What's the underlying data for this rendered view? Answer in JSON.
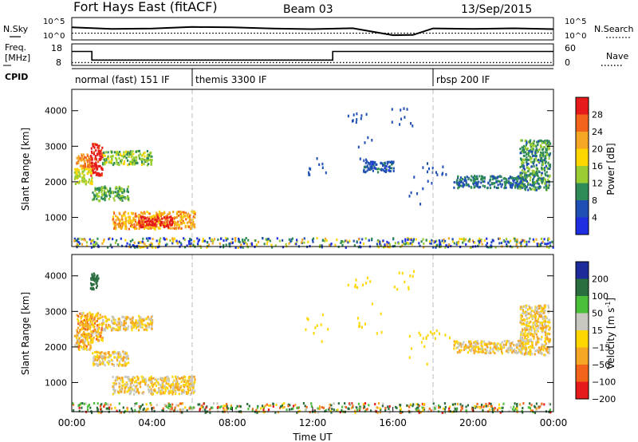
{
  "header": {
    "title": "Fort Hays East (fitACF)",
    "beam": "Beam 03",
    "date": "13/Sep/2015"
  },
  "noise_panel": {
    "left_label": "N.Sky",
    "right_label": "N.Search",
    "left_ticks": [
      "10^5",
      "10^0"
    ],
    "right_ticks": [
      "10^5",
      "10^0"
    ]
  },
  "freq_panel": {
    "left_label_line1": "Freq.",
    "left_label_line2": "[MHz]",
    "right_label": "Nave",
    "left_ticks": [
      "18",
      "8"
    ],
    "right_ticks": [
      "60",
      "0"
    ]
  },
  "cpid": {
    "label": "CPID",
    "segments": [
      {
        "label": "normal (fast) 151 IF",
        "start_hour": 0
      },
      {
        "label": "themis 3300 IF",
        "start_hour": 6
      },
      {
        "label": "rbsp 200 IF",
        "start_hour": 18
      }
    ]
  },
  "power_panel": {
    "ylabel": "Slant Range [km]",
    "yticks": [
      "4000",
      "3000",
      "2000",
      "1000"
    ],
    "colorbar_label": "Power [dB]",
    "colorbar_ticks": [
      "28",
      "24",
      "20",
      "16",
      "12",
      "8",
      "4"
    ]
  },
  "velocity_panel": {
    "ylabel": "Slant Range [km]",
    "yticks": [
      "4000",
      "3000",
      "2000",
      "1000"
    ],
    "colorbar_label_main": "Velocity [m s",
    "colorbar_label_sup": "-1",
    "colorbar_label_end": "]",
    "colorbar_ticks": [
      "200",
      "100",
      "50",
      "15",
      "−15",
      "−50",
      "−100",
      "−200"
    ]
  },
  "xaxis": {
    "label": "Time UT",
    "ticks": [
      "00:00",
      "04:00",
      "08:00",
      "12:00",
      "16:00",
      "20:00",
      "00:00"
    ]
  },
  "colors": {
    "power_scale": [
      "#e61a1a",
      "#f26419",
      "#f5a623",
      "#ffd700",
      "#9acd32",
      "#2e8b57",
      "#1f4fb4",
      "#1e2ee0"
    ],
    "velocity_scale": [
      "#1c2a9a",
      "#2a6e3f",
      "#4cbf3a",
      "#c8c8c0",
      "#ffd700",
      "#f5a623",
      "#f26419",
      "#e61a1a"
    ]
  },
  "chart_data": [
    {
      "type": "line",
      "name": "noise",
      "x_hours": [
        0,
        2,
        4,
        6,
        8,
        10,
        12,
        14,
        16,
        17,
        18,
        20,
        22,
        24
      ],
      "series": [
        {
          "name": "N.Sky",
          "values": [
            0.55,
            0.5,
            0.5,
            0.55,
            0.55,
            0.5,
            0.5,
            0.5,
            0.2,
            0.2,
            0.5,
            0.5,
            0.5,
            0.5
          ]
        },
        {
          "name": "N.Search",
          "values": [
            0.3,
            0.3,
            0.3,
            0.3,
            0.3,
            0.3,
            0.3,
            0.3,
            0.3,
            0.3,
            0.3,
            0.3,
            0.3,
            0.3
          ]
        }
      ]
    },
    {
      "type": "line",
      "name": "frequency",
      "series": [
        {
          "name": "Freq.",
          "x_hours": [
            0,
            1,
            1,
            13,
            13,
            24
          ],
          "values": [
            14.5,
            14.5,
            10.5,
            10.5,
            14.5,
            14.5
          ]
        },
        {
          "name": "Nave",
          "x_hours": [
            0,
            24
          ],
          "values": [
            8,
            8
          ]
        }
      ]
    },
    {
      "type": "heatmap",
      "name": "power",
      "xlim_hours": [
        0,
        24
      ],
      "ylim_km": [
        180,
        4600
      ],
      "value_unit": "dB",
      "scale": [
        4,
        28
      ],
      "regions": [
        {
          "t0": 0.2,
          "t1": 1.0,
          "r0": 2400,
          "r1": 2800,
          "value": 22
        },
        {
          "t0": 0.9,
          "t1": 1.5,
          "r0": 2200,
          "r1": 3100,
          "value": 27
        },
        {
          "t0": 1.5,
          "t1": 4.0,
          "r0": 2500,
          "r1": 2900,
          "value": 14
        },
        {
          "t0": 0.1,
          "t1": 1.0,
          "r0": 1950,
          "r1": 2400,
          "value": 16
        },
        {
          "t0": 1.0,
          "t1": 2.8,
          "r0": 1500,
          "r1": 1900,
          "value": 13
        },
        {
          "t0": 2.0,
          "t1": 6.1,
          "r0": 700,
          "r1": 1200,
          "value": 20
        },
        {
          "t0": 3.3,
          "t1": 5.0,
          "r0": 750,
          "r1": 1050,
          "value": 27
        },
        {
          "t0": 19.0,
          "t1": 22.5,
          "r0": 1850,
          "r1": 2200,
          "value": 10
        },
        {
          "t0": 22.3,
          "t1": 23.8,
          "r0": 1800,
          "r1": 3200,
          "value": 12
        },
        {
          "t0": 14.5,
          "t1": 16.0,
          "r0": 2300,
          "r1": 2600,
          "value": 9
        },
        {
          "t0": 0.0,
          "t1": 24.0,
          "r0": 180,
          "r1": 450,
          "value": 12
        }
      ]
    },
    {
      "type": "heatmap",
      "name": "velocity",
      "xlim_hours": [
        0,
        24
      ],
      "ylim_km": [
        180,
        4600
      ],
      "value_unit": "m s^-1",
      "scale": [
        -200,
        200
      ],
      "regions": [
        {
          "t0": 0.2,
          "t1": 1.5,
          "r0": 2200,
          "r1": 3000,
          "value": -30
        },
        {
          "t0": 1.5,
          "t1": 4.0,
          "r0": 2500,
          "r1": 2900,
          "value": 0
        },
        {
          "t0": 0.1,
          "t1": 1.0,
          "r0": 1950,
          "r1": 2400,
          "value": -20
        },
        {
          "t0": 1.0,
          "t1": 2.8,
          "r0": 1500,
          "r1": 1900,
          "value": 0
        },
        {
          "t0": 2.0,
          "t1": 6.1,
          "r0": 700,
          "r1": 1200,
          "value": 0
        },
        {
          "t0": 0.9,
          "t1": 1.3,
          "r0": 3650,
          "r1": 4100,
          "value": 150
        },
        {
          "t0": 19.0,
          "t1": 22.5,
          "r0": 1850,
          "r1": 2200,
          "value": 0
        },
        {
          "t0": 22.3,
          "t1": 23.8,
          "r0": 1800,
          "r1": 3200,
          "value": 0
        },
        {
          "t0": 0.0,
          "t1": 24.0,
          "r0": 180,
          "r1": 450,
          "value": 40
        }
      ]
    }
  ]
}
